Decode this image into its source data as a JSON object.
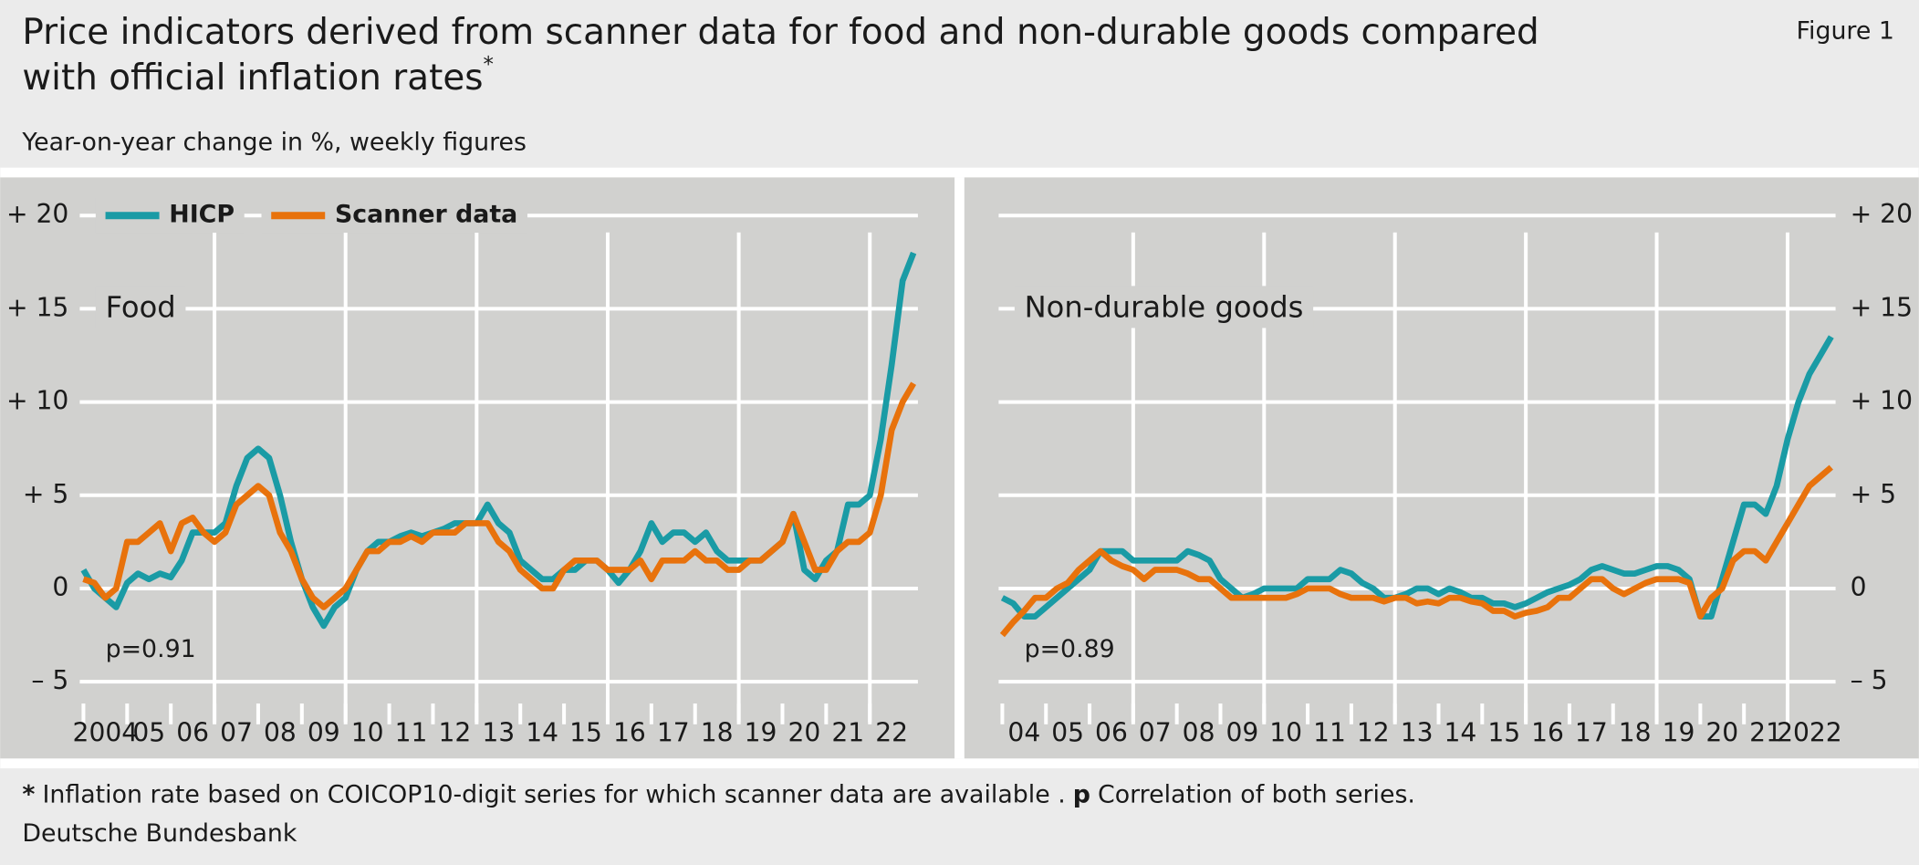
{
  "header": {
    "title": [
      "Price indicators derived from scanner data for food and non-durable goods compared",
      "with official inflation rates"
    ],
    "title_mark": "*",
    "subtitle": "Year-on-year change in %, weekly figures",
    "figure": "Figure 1"
  },
  "footer": {
    "note_mark": "*",
    "note": "Inflation rate based on COICOP10-digit series for which scanner data are available .",
    "corr_mark": "p",
    "corr_note": "Correlation of both series.",
    "source": "Deutsche Bundesbank"
  },
  "chart_data": [
    {
      "type": "line",
      "panel_label": "Food",
      "annotation": "p=0.91",
      "legend": "upper left",
      "yaxis_side": "left",
      "x": [
        2004,
        2004.25,
        2004.5,
        2004.75,
        2005,
        2005.25,
        2005.5,
        2005.75,
        2006,
        2006.25,
        2006.5,
        2006.75,
        2007,
        2007.25,
        2007.5,
        2007.75,
        2008,
        2008.25,
        2008.5,
        2008.75,
        2009,
        2009.25,
        2009.5,
        2009.75,
        2010,
        2010.25,
        2010.5,
        2010.75,
        2011,
        2011.25,
        2011.5,
        2011.75,
        2012,
        2012.25,
        2012.5,
        2012.75,
        2013,
        2013.25,
        2013.5,
        2013.75,
        2014,
        2014.25,
        2014.5,
        2014.75,
        2015,
        2015.25,
        2015.5,
        2015.75,
        2016,
        2016.25,
        2016.5,
        2016.75,
        2017,
        2017.25,
        2017.5,
        2017.75,
        2018,
        2018.25,
        2018.5,
        2018.75,
        2019,
        2019.25,
        2019.5,
        2019.75,
        2020,
        2020.25,
        2020.5,
        2020.75,
        2021,
        2021.25,
        2021.5,
        2021.75,
        2022,
        2022.25,
        2022.5,
        2022.75,
        2023
      ],
      "series": [
        {
          "name": "HICP",
          "color": "#1a9ba5",
          "values": [
            1.0,
            0,
            -0.5,
            -1.0,
            0.3,
            0.8,
            0.5,
            0.8,
            0.6,
            1.5,
            3.0,
            3.0,
            3.0,
            3.5,
            5.5,
            7.0,
            7.5,
            7.0,
            5.0,
            2.5,
            0.5,
            -1.0,
            -2.0,
            -1.0,
            -0.5,
            1.0,
            2.0,
            2.5,
            2.5,
            2.8,
            3.0,
            2.8,
            3.0,
            3.2,
            3.5,
            3.5,
            3.5,
            4.5,
            3.5,
            3.0,
            1.5,
            1.0,
            0.5,
            0.5,
            1.0,
            1.0,
            1.5,
            1.5,
            1.0,
            0.3,
            1.0,
            2.0,
            3.5,
            2.5,
            3.0,
            3.0,
            2.5,
            3.0,
            2.0,
            1.5,
            1.5,
            1.5,
            1.5,
            2.0,
            2.5,
            4.0,
            1.0,
            0.5,
            1.5,
            2.0,
            4.5,
            4.5,
            5.0,
            8.0,
            12.0,
            16.5,
            18.0
          ]
        },
        {
          "name": "Scanner data",
          "color": "#e8720c",
          "values": [
            0.5,
            0.3,
            -0.5,
            0,
            2.5,
            2.5,
            3.0,
            3.5,
            2.0,
            3.5,
            3.8,
            3.0,
            2.5,
            3.0,
            4.5,
            5.0,
            5.5,
            5.0,
            3.0,
            2.0,
            0.5,
            -0.5,
            -1.0,
            -0.5,
            0.0,
            1.0,
            2.0,
            2.0,
            2.5,
            2.5,
            2.8,
            2.5,
            3.0,
            3.0,
            3.0,
            3.5,
            3.5,
            3.5,
            2.5,
            2.0,
            1.0,
            0.5,
            0,
            0,
            1.0,
            1.5,
            1.5,
            1.5,
            1.0,
            1.0,
            1.0,
            1.5,
            0.5,
            1.5,
            1.5,
            1.5,
            2.0,
            1.5,
            1.5,
            1.0,
            1.0,
            1.5,
            1.5,
            2.0,
            2.5,
            4.0,
            2.5,
            1.0,
            1.0,
            2.0,
            2.5,
            2.5,
            3.0,
            5.0,
            8.5,
            10.0,
            11.0
          ]
        }
      ],
      "xlim": [
        2004,
        2023.1
      ],
      "xticks": [
        {
          "value": 2004,
          "label": "2004"
        },
        {
          "value": 2005,
          "label": "05"
        },
        {
          "value": 2006,
          "label": "06"
        },
        {
          "value": 2007,
          "label": "07"
        },
        {
          "value": 2008,
          "label": "08"
        },
        {
          "value": 2009,
          "label": "09"
        },
        {
          "value": 2010,
          "label": "10"
        },
        {
          "value": 2011,
          "label": "11"
        },
        {
          "value": 2012,
          "label": "12"
        },
        {
          "value": 2013,
          "label": "13"
        },
        {
          "value": 2014,
          "label": "14"
        },
        {
          "value": 2015,
          "label": "15"
        },
        {
          "value": 2016,
          "label": "16"
        },
        {
          "value": 2017,
          "label": "17"
        },
        {
          "value": 2018,
          "label": "18"
        },
        {
          "value": 2019,
          "label": "19"
        },
        {
          "value": 2020,
          "label": "20"
        },
        {
          "value": 2021,
          "label": "21"
        },
        {
          "value": 2022,
          "label": "22"
        }
      ],
      "xgrid": [
        2007,
        2010,
        2013,
        2016,
        2019,
        2022
      ],
      "ylim": [
        -7.5,
        22
      ],
      "yticks": [
        {
          "value": -5,
          "label": "– 5"
        },
        0,
        {
          "value": 5,
          "label": "+  5"
        },
        {
          "value": 10,
          "label": "+ 10"
        },
        {
          "value": 15,
          "label": "+ 15"
        },
        {
          "value": 20,
          "label": "+ 20"
        }
      ]
    },
    {
      "type": "line",
      "panel_label": "Non-durable goods",
      "annotation": "p=0.89",
      "yaxis_side": "right",
      "x": [
        2004,
        2004.25,
        2004.5,
        2004.75,
        2005,
        2005.25,
        2005.5,
        2005.75,
        2006,
        2006.25,
        2006.5,
        2006.75,
        2007,
        2007.25,
        2007.5,
        2007.75,
        2008,
        2008.25,
        2008.5,
        2008.75,
        2009,
        2009.25,
        2009.5,
        2009.75,
        2010,
        2010.25,
        2010.5,
        2010.75,
        2011,
        2011.25,
        2011.5,
        2011.75,
        2012,
        2012.25,
        2012.5,
        2012.75,
        2013,
        2013.25,
        2013.5,
        2013.75,
        2014,
        2014.25,
        2014.5,
        2014.75,
        2015,
        2015.25,
        2015.5,
        2015.75,
        2016,
        2016.25,
        2016.5,
        2016.75,
        2017,
        2017.25,
        2017.5,
        2017.75,
        2018,
        2018.25,
        2018.5,
        2018.75,
        2019,
        2019.25,
        2019.5,
        2019.75,
        2020,
        2020.25,
        2020.5,
        2020.75,
        2021,
        2021.25,
        2021.5,
        2021.75,
        2022,
        2022.25,
        2022.5,
        2022.75,
        2023
      ],
      "series": [
        {
          "color": "#1a9ba5",
          "values": [
            -0.5,
            -0.8,
            -1.5,
            -1.5,
            -1.0,
            -0.5,
            0.0,
            0.5,
            1.0,
            2.0,
            2.0,
            2.0,
            1.5,
            1.5,
            1.5,
            1.5,
            1.5,
            2.0,
            1.8,
            1.5,
            0.5,
            0.0,
            -0.5,
            -0.3,
            0.0,
            0.0,
            0.0,
            0.0,
            0.5,
            0.5,
            0.5,
            1.0,
            0.8,
            0.3,
            0.0,
            -0.5,
            -0.5,
            -0.3,
            0.0,
            0.0,
            -0.3,
            0.0,
            -0.2,
            -0.5,
            -0.5,
            -0.8,
            -0.8,
            -1.0,
            -0.8,
            -0.5,
            -0.2,
            0.0,
            0.2,
            0.5,
            1.0,
            1.2,
            1.0,
            0.8,
            0.8,
            1.0,
            1.2,
            1.2,
            1.0,
            0.5,
            -1.5,
            -1.5,
            0.5,
            2.5,
            4.5,
            4.5,
            4.0,
            5.5,
            8.0,
            10.0,
            11.5,
            12.5,
            13.5
          ]
        },
        {
          "color": "#e8720c",
          "values": [
            -2.5,
            -1.8,
            -1.2,
            -0.5,
            -0.5,
            0.0,
            0.3,
            1.0,
            1.5,
            2.0,
            1.5,
            1.2,
            1.0,
            0.5,
            1.0,
            1.0,
            1.0,
            0.8,
            0.5,
            0.5,
            0.0,
            -0.5,
            -0.5,
            -0.5,
            -0.5,
            -0.5,
            -0.5,
            -0.3,
            0.0,
            0.0,
            0.0,
            -0.3,
            -0.5,
            -0.5,
            -0.5,
            -0.7,
            -0.5,
            -0.5,
            -0.8,
            -0.7,
            -0.8,
            -0.5,
            -0.5,
            -0.7,
            -0.8,
            -1.2,
            -1.2,
            -1.5,
            -1.3,
            -1.2,
            -1.0,
            -0.5,
            -0.5,
            0.0,
            0.5,
            0.5,
            0.0,
            -0.3,
            0.0,
            0.3,
            0.5,
            0.5,
            0.5,
            0.3,
            -1.5,
            -0.5,
            0.0,
            1.5,
            2.0,
            2.0,
            1.5,
            2.5,
            3.5,
            4.5,
            5.5,
            6.0,
            6.5
          ]
        }
      ],
      "xlim": [
        2004,
        2023.1
      ],
      "xticks": [
        {
          "value": 2004,
          "label": "04"
        },
        {
          "value": 2005,
          "label": "05"
        },
        {
          "value": 2006,
          "label": "06"
        },
        {
          "value": 2007,
          "label": "07"
        },
        {
          "value": 2008,
          "label": "08"
        },
        {
          "value": 2009,
          "label": "09"
        },
        {
          "value": 2010,
          "label": "10"
        },
        {
          "value": 2011,
          "label": "11"
        },
        {
          "value": 2012,
          "label": "12"
        },
        {
          "value": 2013,
          "label": "13"
        },
        {
          "value": 2014,
          "label": "14"
        },
        {
          "value": 2015,
          "label": "15"
        },
        {
          "value": 2016,
          "label": "16"
        },
        {
          "value": 2017,
          "label": "17"
        },
        {
          "value": 2018,
          "label": "18"
        },
        {
          "value": 2019,
          "label": "19"
        },
        {
          "value": 2020,
          "label": "20"
        },
        {
          "value": 2021,
          "label": "21"
        },
        {
          "value": 2022,
          "label": "2022"
        }
      ],
      "xgrid": [
        2007,
        2010,
        2013,
        2016,
        2019,
        2022
      ],
      "ylim": [
        -7.5,
        22
      ],
      "yticks": [
        {
          "value": -5,
          "label": "– 5"
        },
        0,
        {
          "value": 5,
          "label": "+  5"
        },
        {
          "value": 10,
          "label": "+ 10"
        },
        {
          "value": 15,
          "label": "+ 15"
        },
        {
          "value": 20,
          "label": "+ 20"
        }
      ]
    }
  ]
}
